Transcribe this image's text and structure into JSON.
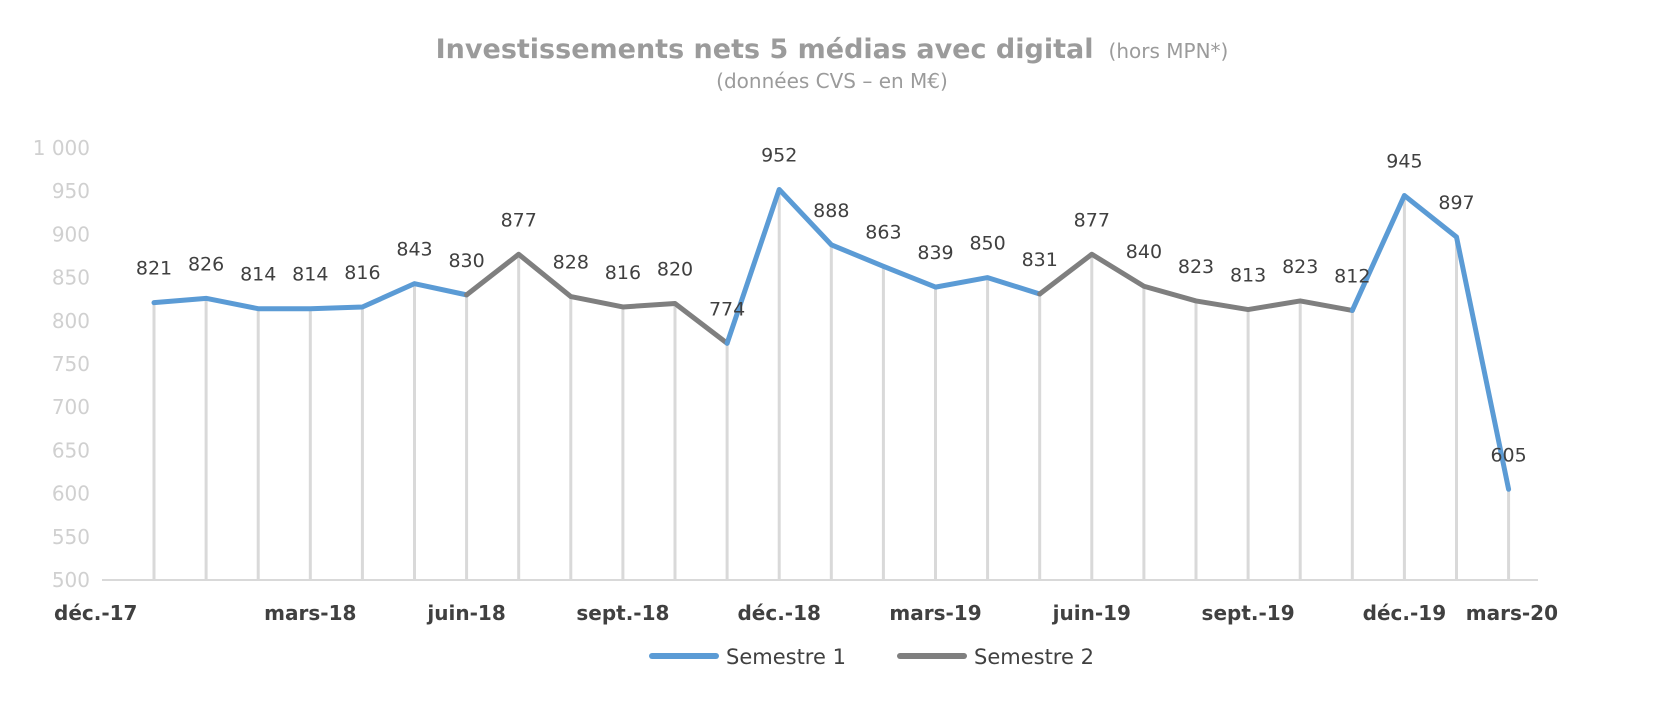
{
  "chart_data": {
    "type": "line",
    "title": "Investissements nets 5 médias avec digital",
    "title_suffix": "(hors MPN*)",
    "subtitle": "(données CVS – en M€)",
    "xlabel": "",
    "ylabel": "",
    "ylim": [
      500,
      1000
    ],
    "yticks": [
      500,
      550,
      600,
      650,
      700,
      750,
      800,
      850,
      900,
      950,
      1000
    ],
    "ytick_labels": [
      "500",
      "550",
      "600",
      "650",
      "700",
      "750",
      "800",
      "850",
      "900",
      "950",
      "1 000"
    ],
    "x_tick_labels": [
      "déc.-17",
      "mars-18",
      "juin-18",
      "sept.-18",
      "déc.-18",
      "mars-19",
      "juin-19",
      "sept.-19",
      "déc.-19",
      "mars-20"
    ],
    "x_tick_every": 3,
    "values": [
      821,
      826,
      814,
      814,
      816,
      843,
      830,
      877,
      828,
      816,
      820,
      774,
      952,
      888,
      863,
      839,
      850,
      831,
      877,
      840,
      823,
      813,
      823,
      812,
      945,
      897,
      605
    ],
    "segments": [
      {
        "series": "Semestre 1",
        "start": 0,
        "end": 6
      },
      {
        "series": "Semestre 2",
        "start": 6,
        "end": 11
      },
      {
        "series": "Semestre 1",
        "start": 11,
        "end": 17
      },
      {
        "series": "Semestre 2",
        "start": 17,
        "end": 23
      },
      {
        "series": "Semestre 1",
        "start": 23,
        "end": 26
      }
    ],
    "series": [
      {
        "name": "Semestre 1",
        "color": "#5b9bd5"
      },
      {
        "name": "Semestre 2",
        "color": "#7f7f7f"
      }
    ],
    "grid": false,
    "drop_lines": true,
    "legend_position": "bottom-center"
  }
}
